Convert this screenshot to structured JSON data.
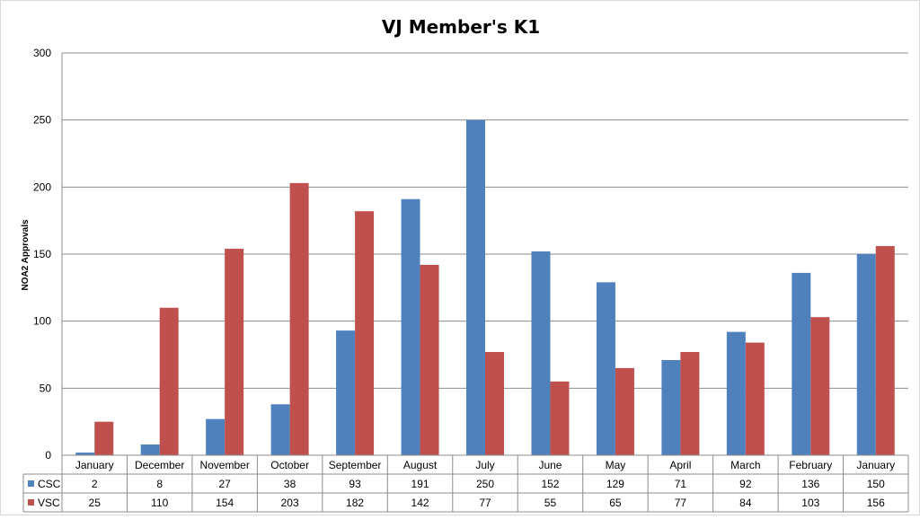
{
  "chart_data": {
    "type": "bar",
    "title": "VJ Member's K1",
    "ylabel": "NOA2 Approvals",
    "xlabel": "",
    "ylim": [
      0,
      300
    ],
    "yticks": [
      0,
      50,
      100,
      150,
      200,
      250,
      300
    ],
    "grid": true,
    "legend": "data-table",
    "categories": [
      "January",
      "December",
      "November",
      "October",
      "September",
      "August",
      "July",
      "June",
      "May",
      "April",
      "March",
      "February",
      "January"
    ],
    "series": [
      {
        "name": "CSC",
        "color": "#4f81bd",
        "values": [
          2,
          8,
          27,
          38,
          93,
          191,
          250,
          152,
          129,
          71,
          92,
          136,
          150
        ]
      },
      {
        "name": "VSC",
        "color": "#c0504d",
        "values": [
          25,
          110,
          154,
          203,
          182,
          142,
          77,
          55,
          65,
          77,
          84,
          103,
          156
        ]
      }
    ]
  }
}
